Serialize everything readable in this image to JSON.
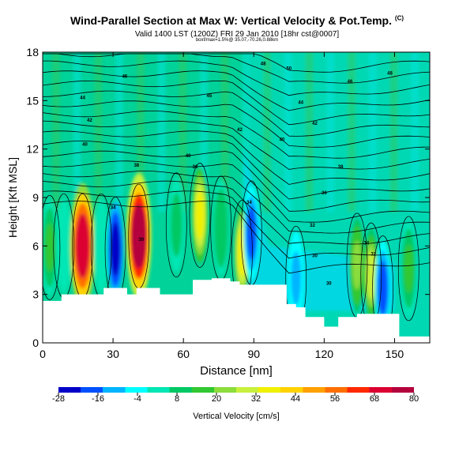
{
  "chart_data": {
    "type": "heatmap",
    "title": "Wind-Parallel Section at Max W: Vertical Velocity & Pot.Temp.",
    "title_mark": "(C)",
    "subtitle": "Valid 1400 LST (1200Z) FRI 29 Jan 2010 [18hr cst@0007]",
    "subtitle2": "boxf/max=1.5%@ 35.07,-70.26,0.88km",
    "xlabel": "Distance [nm]",
    "ylabel": "Height [Kft MSL]",
    "xlim": [
      0,
      165
    ],
    "ylim": [
      0,
      18
    ],
    "xticks": [
      "0",
      "30",
      "60",
      "90",
      "120",
      "150"
    ],
    "yticks": [
      "0",
      "3",
      "6",
      "9",
      "12",
      "15",
      "18"
    ],
    "grid": false,
    "colorbar": {
      "label": "Vertical Velocity [cm/s]",
      "ticks": [
        "-28",
        "-16",
        "-4",
        "8",
        "20",
        "32",
        "44",
        "56",
        "68",
        "80"
      ],
      "min": -28,
      "max": 80,
      "colors": [
        "#0000c8",
        "#0050ff",
        "#00b4ff",
        "#00ffff",
        "#00e6b4",
        "#00c864",
        "#32c832",
        "#8cdc3c",
        "#c8f03c",
        "#f0f000",
        "#ffd200",
        "#ffa000",
        "#ff6e00",
        "#ff2800",
        "#dc0032",
        "#b4003c"
      ]
    },
    "isentrope_labels": [
      "30",
      "30",
      "30",
      "32",
      "32",
      "34",
      "34",
      "34",
      "36",
      "36",
      "38",
      "38",
      "40",
      "40",
      "40",
      "42",
      "42",
      "42",
      "44",
      "44",
      "45",
      "46",
      "46",
      "48",
      "48",
      "50"
    ],
    "cell_updrafts": [
      {
        "x": 3,
        "y": 5.9,
        "w": 14
      },
      {
        "x": 9,
        "y": 6.0,
        "w": 5
      },
      {
        "x": 17,
        "y": 6.0,
        "w": 70
      },
      {
        "x": 25,
        "y": 6.0,
        "w": 4
      },
      {
        "x": 31,
        "y": 5.8,
        "w": -24
      },
      {
        "x": 41,
        "y": 6.6,
        "w": 76
      },
      {
        "x": 57,
        "y": 7.3,
        "w": 8
      },
      {
        "x": 67,
        "y": 7.9,
        "w": 38
      },
      {
        "x": 76,
        "y": 7.1,
        "w": 10
      },
      {
        "x": 85,
        "y": 5.6,
        "w": 34
      },
      {
        "x": 89,
        "y": 6.8,
        "w": -18
      },
      {
        "x": 108,
        "y": 4.0,
        "w": -8
      },
      {
        "x": 134,
        "y": 4.8,
        "w": 22
      },
      {
        "x": 140,
        "y": 4.2,
        "w": 28
      },
      {
        "x": 145,
        "y": 3.4,
        "w": -16
      },
      {
        "x": 156,
        "y": 4.6,
        "w": 14
      }
    ],
    "terrain_top_kft": [
      [
        0,
        2.6
      ],
      [
        8,
        3.0
      ],
      [
        24,
        3.0
      ],
      [
        26,
        3.4
      ],
      [
        34,
        3.4
      ],
      [
        36,
        3.0
      ],
      [
        40,
        3.4
      ],
      [
        48,
        3.4
      ],
      [
        50,
        3.0
      ],
      [
        62,
        3.0
      ],
      [
        64,
        3.9
      ],
      [
        66,
        3.9
      ],
      [
        72,
        4.0
      ],
      [
        80,
        3.8
      ],
      [
        84,
        3.6
      ],
      [
        100,
        3.6
      ],
      [
        104,
        2.4
      ],
      [
        108,
        2.2
      ],
      [
        112,
        1.6
      ],
      [
        120,
        1.0
      ],
      [
        126,
        1.6
      ],
      [
        134,
        1.8
      ],
      [
        150,
        1.8
      ],
      [
        152,
        0.4
      ],
      [
        165,
        0.4
      ]
    ]
  }
}
